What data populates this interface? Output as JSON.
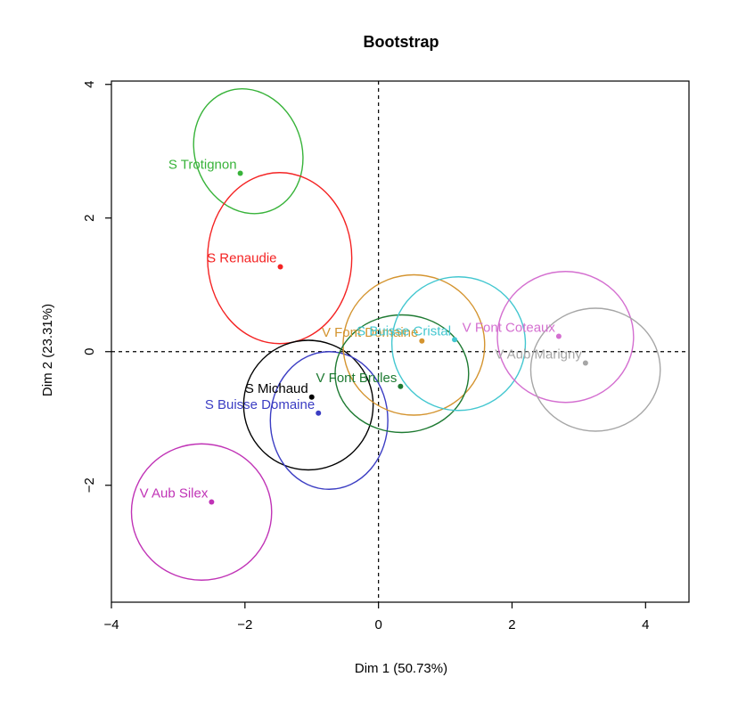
{
  "chart_data": {
    "type": "scatter",
    "title": "Bootstrap",
    "xlabel": "Dim 1 (50.73%)",
    "ylabel": "Dim 2 (23.31%)",
    "xlim": [
      -4.0,
      4.65
    ],
    "ylim": [
      -3.75,
      4.05
    ],
    "xticks": [
      -4,
      -2,
      0,
      2,
      4
    ],
    "yticks": [
      -2,
      0,
      2,
      4
    ],
    "xtick_labels": [
      "−4",
      "−2",
      "0",
      "2",
      "4"
    ],
    "ytick_labels": [
      "−2",
      "0",
      "2",
      "4"
    ],
    "grid": false,
    "reference_lines": [
      0
    ],
    "points": [
      {
        "label": "S Trotignon",
        "x": -2.07,
        "y": 2.67,
        "color": "#38b33a",
        "ellipse": {
          "cx": -1.95,
          "cy": 3.0,
          "rx": 0.8,
          "ry": 0.95,
          "angle": -20
        }
      },
      {
        "label": "S Renaudie",
        "x": -1.47,
        "y": 1.27,
        "color": "#f42323",
        "ellipse": {
          "cx": -1.48,
          "cy": 1.4,
          "rx": 1.08,
          "ry": 1.28,
          "angle": 0
        }
      },
      {
        "label": "S Michaud",
        "x": -1.0,
        "y": -0.68,
        "color": "#000000",
        "ellipse": {
          "cx": -1.05,
          "cy": -0.8,
          "rx": 0.97,
          "ry": 0.97,
          "angle": 0
        }
      },
      {
        "label": "S Buisse Domaine",
        "x": -0.9,
        "y": -0.92,
        "color": "#3b3dc3",
        "ellipse": {
          "cx": -0.74,
          "cy": -1.03,
          "rx": 0.88,
          "ry": 1.03,
          "angle": 0
        }
      },
      {
        "label": "V Aub Silex",
        "x": -2.5,
        "y": -2.25,
        "color": "#c033b6",
        "ellipse": {
          "cx": -2.65,
          "cy": -2.4,
          "rx": 1.05,
          "ry": 1.02,
          "angle": 0
        }
      },
      {
        "label": "V Font Domaine",
        "x": 0.65,
        "y": 0.16,
        "color": "#d4942f",
        "ellipse": {
          "cx": 0.53,
          "cy": 0.1,
          "rx": 1.06,
          "ry": 1.05,
          "angle": 0
        }
      },
      {
        "label": "V Font Brules",
        "x": 0.33,
        "y": -0.52,
        "color": "#1e7a32",
        "ellipse": {
          "cx": 0.35,
          "cy": -0.33,
          "rx": 1.0,
          "ry": 0.88,
          "angle": 0
        }
      },
      {
        "label": "S Buisse Cristal",
        "x": 1.14,
        "y": 0.18,
        "color": "#43c7d0",
        "ellipse": {
          "cx": 1.2,
          "cy": 0.12,
          "rx": 1.0,
          "ry": 1.0,
          "angle": 0
        }
      },
      {
        "label": "V Font Coteaux",
        "x": 2.7,
        "y": 0.23,
        "color": "#d46fd0",
        "ellipse": {
          "cx": 2.8,
          "cy": 0.22,
          "rx": 1.02,
          "ry": 0.98,
          "angle": 0
        }
      },
      {
        "label": "V Aub Marigny",
        "x": 3.1,
        "y": -0.17,
        "color": "#a6a6a6",
        "ellipse": {
          "cx": 3.25,
          "cy": -0.27,
          "rx": 0.97,
          "ry": 0.92,
          "angle": 0
        }
      }
    ]
  }
}
